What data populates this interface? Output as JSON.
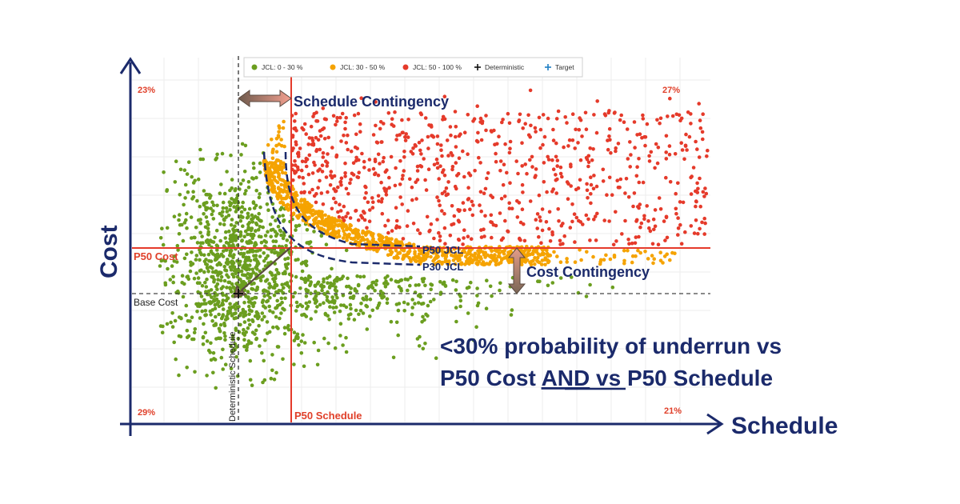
{
  "chart_data": {
    "type": "scatter",
    "xlabel": "Schedule",
    "ylabel": "Cost",
    "x_range": [
      0,
      100
    ],
    "y_range": [
      0,
      100
    ],
    "grid": true,
    "legend_position": "top",
    "legend": [
      {
        "label": "JCL: 0 - 30 %",
        "color": "#6b9e1f",
        "marker": "dot"
      },
      {
        "label": "JCL: 30 - 50 %",
        "color": "#f5a300",
        "marker": "dot"
      },
      {
        "label": "JCL: 50 - 100 %",
        "color": "#e53a2a",
        "marker": "dot"
      },
      {
        "label": "Deterministic",
        "color": "#111111",
        "marker": "cross"
      },
      {
        "label": "Target",
        "color": "#1f7fc4",
        "marker": "cross"
      }
    ],
    "quadrants": {
      "top_left": "23%",
      "top_right": "27%",
      "bottom_left": "29%",
      "bottom_right": "21%"
    },
    "reference_lines": {
      "p50_schedule": {
        "label": "P50 Schedule",
        "x": 28
      },
      "deterministic_schedule": {
        "label": "Deterministic Schedule",
        "x": 19
      },
      "p50_cost": {
        "label": "P50 Cost",
        "y": 52
      },
      "base_cost": {
        "label": "Base Cost",
        "y": 36
      }
    },
    "contours": [
      {
        "label": "P50 JCL"
      },
      {
        "label": "P30 JCL"
      }
    ],
    "annotations": {
      "schedule_contingency": "Schedule Contingency",
      "cost_contingency": "Cost Contingency"
    }
  },
  "headline": {
    "line1": "<30% probability of underrun vs",
    "line2_part1": "P50 Cost ",
    "line2_underlined": "AND",
    "line2_part2": " vs P50 Schedule"
  },
  "colors": {
    "navy": "#1b2a6b",
    "red": "#e53a2a",
    "orange": "#f5a300",
    "green": "#6b9e1f",
    "label_red": "#e0402a"
  }
}
